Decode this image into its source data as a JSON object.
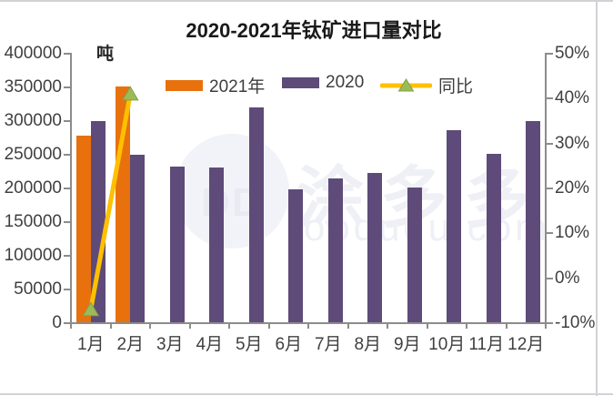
{
  "watermark": {
    "logo_text": "DD",
    "cn_text": "涂多多",
    "site_text": "oodudu.com"
  },
  "chart_data": {
    "type": "bar",
    "title": "2020-2021年钛矿进口量对比",
    "unit": "吨",
    "grid": false,
    "legend_position": "top",
    "categories": [
      "1月",
      "2月",
      "3月",
      "4月",
      "5月",
      "6月",
      "7月",
      "8月",
      "9月",
      "10月",
      "11月",
      "12月"
    ],
    "series": [
      {
        "name": "2021年",
        "type": "bar",
        "axis": "left",
        "color": "#e8710d",
        "values": [
          278000,
          352000,
          null,
          null,
          null,
          null,
          null,
          null,
          null,
          null,
          null,
          null
        ]
      },
      {
        "name": "2020",
        "type": "bar",
        "axis": "left",
        "color": "#5e4b79",
        "values": [
          300000,
          250000,
          233000,
          231000,
          320000,
          198000,
          215000,
          223000,
          202000,
          287000,
          252000,
          300000
        ]
      },
      {
        "name": "同比",
        "type": "line",
        "axis": "right",
        "color": "#ffc000",
        "marker": "triangle",
        "marker_color": "#9bbb59",
        "marker_edge": "#83a046",
        "values": [
          -7,
          41,
          null,
          null,
          null,
          null,
          null,
          null,
          null,
          null,
          null,
          null
        ]
      }
    ],
    "left_axis": {
      "min": 0,
      "max": 400000,
      "step": 50000,
      "tick_labels": [
        "400000",
        "350000",
        "300000",
        "250000",
        "200000",
        "150000",
        "100000",
        "50000",
        "0"
      ]
    },
    "right_axis": {
      "min": -10,
      "max": 50,
      "step": 10,
      "tick_labels": [
        "50%",
        "40%",
        "30%",
        "20%",
        "10%",
        "0%",
        "-10%"
      ]
    }
  }
}
